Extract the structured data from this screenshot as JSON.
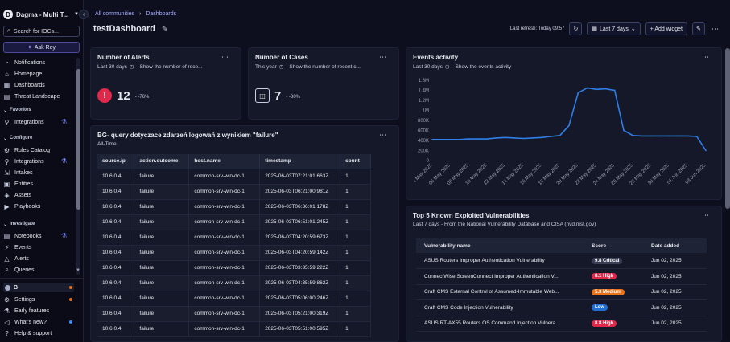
{
  "sidebar": {
    "org_name": "Dagma - Multi T...",
    "org_initial": "D",
    "search_label": "Search for IOCs...",
    "ask_label": "Ask Roy",
    "items_top": [
      "Notifications",
      "Homepage",
      "Dashboards",
      "Threat Landscape"
    ],
    "favorites_label": "Favorites",
    "favorites": [
      "Integrations"
    ],
    "configure_label": "Configure",
    "configure": [
      "Rules Catalog",
      "Integrations",
      "Intakes",
      "Entities",
      "Assets",
      "Playbooks"
    ],
    "investigate_label": "Investigate",
    "investigate": [
      "Notebooks",
      "Events",
      "Alerts",
      "Queries"
    ],
    "user_label": "B",
    "bottom": [
      "Settings",
      "Early features",
      "What's new?",
      "Help & support"
    ]
  },
  "breadcrumb": {
    "root": "All communities",
    "current": "Dashboards"
  },
  "page": {
    "title": "testDashboard"
  },
  "toolbar": {
    "last_refresh": "Last refresh: Today 09:57",
    "range": "Last 7 days",
    "add_widget": "+ Add widget"
  },
  "widgets": {
    "alerts": {
      "title": "Number of Alerts",
      "sub": "Last 30 days",
      "desc": "- Show the number of rece...",
      "value": "12",
      "delta": "- -76%"
    },
    "cases": {
      "title": "Number of Cases",
      "sub": "This year",
      "desc": "- Show the number of recent c...",
      "value": "7",
      "delta": "- -30%"
    },
    "events": {
      "title": "Events activity",
      "sub": "Last 30 days",
      "desc": "- Show the events activity"
    },
    "query": {
      "title": "BG- query dotyczace zdarzeń logowań z wynikiem \"failure\"",
      "sub": "All-Time",
      "columns": [
        "source.ip",
        "action.outcome",
        "host.name",
        "timestamp",
        "count"
      ],
      "rows": [
        [
          "10.6.0.4",
          "failure",
          "common-srv-win-dc-1",
          "2025-06-03T07:21:01.663Z",
          "1"
        ],
        [
          "10.6.0.4",
          "failure",
          "common-srv-win-dc-1",
          "2025-06-03T06:21:00.981Z",
          "1"
        ],
        [
          "10.6.0.4",
          "failure",
          "common-srv-win-dc-1",
          "2025-06-03T06:36:01.178Z",
          "1"
        ],
        [
          "10.6.0.4",
          "failure",
          "common-srv-win-dc-1",
          "2025-06-03T06:51:01.245Z",
          "1"
        ],
        [
          "10.6.0.4",
          "failure",
          "common-srv-win-dc-1",
          "2025-06-03T04:20:59.673Z",
          "1"
        ],
        [
          "10.6.0.4",
          "failure",
          "common-srv-win-dc-1",
          "2025-06-03T04:20:59.142Z",
          "1"
        ],
        [
          "10.6.0.4",
          "failure",
          "common-srv-win-dc-1",
          "2025-06-03T03:35:59.222Z",
          "1"
        ],
        [
          "10.6.0.4",
          "failure",
          "common-srv-win-dc-1",
          "2025-06-03T04:35:59.862Z",
          "1"
        ],
        [
          "10.6.0.4",
          "failure",
          "common-srv-win-dc-1",
          "2025-06-03T05:06:00.246Z",
          "1"
        ],
        [
          "10.6.0.4",
          "failure",
          "common-srv-win-dc-1",
          "2025-06-03T05:21:00.319Z",
          "1"
        ],
        [
          "10.6.0.4",
          "failure",
          "common-srv-win-dc-1",
          "2025-06-03T05:51:00.595Z",
          "1"
        ]
      ]
    },
    "vulns": {
      "title": "Top 5 Known Exploited Vulnerabilities",
      "sub": "Last 7 days - From the National Vulnerability Database and CISA (nvd.nist.gov)",
      "columns": [
        "Vulnerability name",
        "Score",
        "Date added"
      ],
      "rows": [
        {
          "name": "ASUS Routers Improper Authentication Vulnerability",
          "score": "9.8 Critical",
          "color": "#3a3f55",
          "date": "Jun 02, 2025"
        },
        {
          "name": "ConnectWise ScreenConnect Improper Authentication V...",
          "score": "8.1 High",
          "color": "#e0284a",
          "date": "Jun 02, 2025"
        },
        {
          "name": "Craft CMS External Control of Assumed-Immutable Web...",
          "score": "5.3 Medium",
          "color": "#e8731c",
          "date": "Jun 02, 2025"
        },
        {
          "name": "Craft CMS Code Injection Vulnerability",
          "score": "Low",
          "color": "#1f6fd6",
          "date": "Jun 02, 2025"
        },
        {
          "name": "ASUS RT-AX55 Routers OS Command Injection Vulnera...",
          "score": "8.8 High",
          "color": "#e0284a",
          "date": "Jun 02, 2025"
        }
      ]
    }
  },
  "chart_data": {
    "type": "line",
    "title": "",
    "xlabel": "",
    "ylabel": "",
    "y_ticks": [
      "0",
      "200K",
      "400K",
      "600K",
      "800K",
      "1M",
      "1.2M",
      "1.4M",
      "1.6M"
    ],
    "ylim": [
      0,
      1600000
    ],
    "x_ticks": [
      "04 May 2025",
      "06 May 2025",
      "08 May 2025",
      "10 May 2025",
      "12 May 2025",
      "14 May 2025",
      "16 May 2025",
      "18 May 2025",
      "20 May 2025",
      "22 May 2025",
      "24 May 2025",
      "26 May 2025",
      "28 May 2025",
      "30 May 2025",
      "01 Jun 2025",
      "03 Jun 2025"
    ],
    "x": [
      "04 May 2025",
      "05 May 2025",
      "06 May 2025",
      "07 May 2025",
      "08 May 2025",
      "09 May 2025",
      "10 May 2025",
      "11 May 2025",
      "12 May 2025",
      "13 May 2025",
      "14 May 2025",
      "15 May 2025",
      "16 May 2025",
      "17 May 2025",
      "18 May 2025",
      "19 May 2025",
      "20 May 2025",
      "21 May 2025",
      "22 May 2025",
      "23 May 2025",
      "24 May 2025",
      "25 May 2025",
      "26 May 2025",
      "27 May 2025",
      "28 May 2025",
      "29 May 2025",
      "30 May 2025",
      "31 May 2025",
      "01 Jun 2025",
      "02 Jun 2025",
      "03 Jun 2025"
    ],
    "series": [
      {
        "values": [
          420000,
          420000,
          420000,
          420000,
          430000,
          430000,
          430000,
          450000,
          460000,
          450000,
          440000,
          450000,
          460000,
          480000,
          500000,
          700000,
          1350000,
          1450000,
          1420000,
          1430000,
          1400000,
          600000,
          500000,
          490000,
          490000,
          490000,
          490000,
          490000,
          490000,
          480000,
          200000
        ]
      }
    ],
    "line_color": "#2f7fe8",
    "grid": false
  }
}
